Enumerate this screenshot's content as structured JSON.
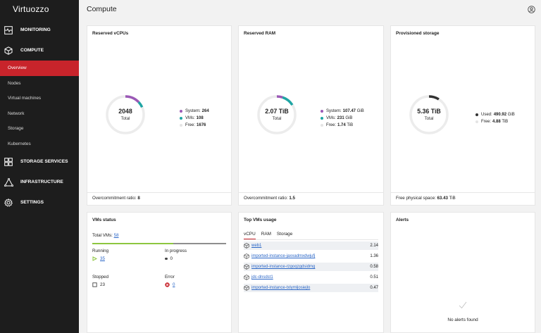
{
  "app": {
    "logo": "Virtuozzo"
  },
  "sidebar": {
    "sections": [
      {
        "label": "MONITORING",
        "icon": "monitoring-icon"
      },
      {
        "label": "COMPUTE",
        "icon": "cube-icon"
      },
      {
        "label": "STORAGE SERVICES",
        "icon": "storage-services-icon"
      },
      {
        "label": "INFRASTRUCTURE",
        "icon": "infrastructure-icon"
      },
      {
        "label": "SETTINGS",
        "icon": "gear-icon"
      }
    ],
    "compute_items": [
      "Overview",
      "Nodes",
      "Virtual machines",
      "Network",
      "Storage",
      "Kubernetes"
    ],
    "active_item": "Overview"
  },
  "header": {
    "title": "Compute"
  },
  "vcpus": {
    "title": "Reserved vCPUs",
    "total": "2048",
    "total_label": "Total",
    "legend": [
      {
        "label": "System:",
        "value": "264",
        "color": "#9b59b6"
      },
      {
        "label": "VMs:",
        "value": "108",
        "color": "#1fa5a4"
      },
      {
        "label": "Free:",
        "value": "1676",
        "color": "#ececec"
      }
    ],
    "footer_label": "Overcommitment ratio:",
    "footer_value": "8"
  },
  "ram": {
    "title": "Reserved RAM",
    "total": "2.07 TiB",
    "total_label": "Total",
    "legend": [
      {
        "label": "System:",
        "value": "107.47",
        "unit": "GiB",
        "color": "#9b59b6"
      },
      {
        "label": "VMs:",
        "value": "231",
        "unit": "GiB",
        "color": "#1fa5a4"
      },
      {
        "label": "Free:",
        "value": "1.74",
        "unit": "TiB",
        "color": "#ececec"
      }
    ],
    "footer_label": "Overcommitment ratio:",
    "footer_value": "1.5"
  },
  "storage": {
    "title": "Provisioned storage",
    "total": "5.36 TiB",
    "total_label": "Total",
    "legend": [
      {
        "label": "Used:",
        "value": "490.92",
        "unit": "GiB",
        "color": "#333333"
      },
      {
        "label": "Free:",
        "value": "4.88",
        "unit": "TiB",
        "color": "#ececec"
      }
    ],
    "footer_label": "Free physical space:",
    "footer_value": "63.43",
    "footer_unit": "TiB"
  },
  "vms_status": {
    "title": "VMs status",
    "total_label": "Total VMs:",
    "total_value": "58",
    "running_label": "Running",
    "running_value": "35",
    "inprogress_label": "In progress",
    "inprogress_value": "0",
    "stopped_label": "Stopped",
    "stopped_value": "23",
    "error_label": "Error",
    "error_value": "0"
  },
  "top_vms": {
    "title": "Top VMs usage",
    "tabs": [
      "vCPU",
      "RAM",
      "Storage"
    ],
    "active_tab": "vCPU",
    "rows": [
      {
        "name": "web1",
        "value": "2.14"
      },
      {
        "name": "imported-instance-jaxxadmxdwjufj",
        "value": "1.36"
      },
      {
        "name": "imported-instance-rzgoqzgdsidmg",
        "value": "0.58"
      },
      {
        "name": "jdc-dnsdst1",
        "value": "0.51"
      },
      {
        "name": "imported-instance-txlymljosiejlo",
        "value": "0.47"
      }
    ]
  },
  "alerts": {
    "title": "Alerts",
    "empty_text": "No alerts found"
  },
  "colors": {
    "accent": "#c8242b",
    "system": "#9b59b6",
    "vms": "#1fa5a4",
    "used": "#333333",
    "free": "#ececec",
    "running": "#8dc63f"
  }
}
